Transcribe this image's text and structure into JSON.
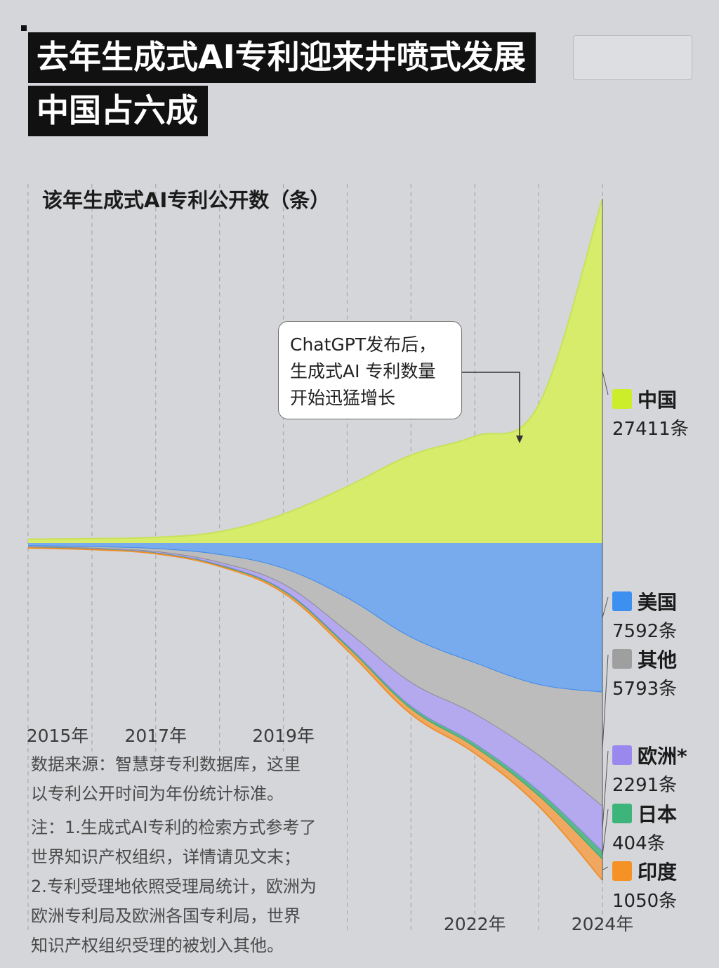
{
  "header": {
    "title_line1": "去年生成式AI专利迎来井喷式发展",
    "title_line2": "中国占六成"
  },
  "annotation": {
    "line1": "ChatGPT发布后，",
    "line2": "生成式AI 专利数量",
    "line3": "开始迅猛增长"
  },
  "notes": {
    "source_line1": "数据来源：智慧芽专利数据库，这里",
    "source_line2": "以专利公开时间为年份统计标准。",
    "note_line1": "注：1.生成式AI专利的检索方式参考了",
    "note_line2": "世界知识产权组织，详情请见文末；",
    "note_line3": "2.专利受理地依照受理局统计，欧洲为",
    "note_line4": "欧洲专利局及欧洲各国专利局，世界",
    "note_line5": "知识产权组织受理的被划入其他。"
  },
  "chart_data": {
    "type": "area",
    "title": "该年生成式AI专利公开数（条）",
    "x": [
      2015,
      2016,
      2017,
      2018,
      2019,
      2020,
      2021,
      2022,
      2023,
      2024
    ],
    "x_tick_labels": [
      "2015年",
      "2017年",
      "2019年",
      "2022年",
      "2024年"
    ],
    "x_tick_years": [
      2015,
      2017,
      2019,
      2022,
      2024
    ],
    "series": [
      {
        "name": "中国",
        "values": [
          300,
          350,
          450,
          900,
          2300,
          4500,
          7000,
          8500,
          11000,
          27411
        ],
        "color": "#d7ec6a",
        "stroke": "#c6e25a",
        "value_label": "27411条",
        "swatch": "#ccee2a"
      },
      {
        "name": "美国",
        "values": [
          150,
          200,
          300,
          600,
          1300,
          2800,
          4800,
          6100,
          7200,
          7592
        ],
        "color": "#78aaee",
        "stroke": "#3a8ae8",
        "value_label": "7592条",
        "swatch": "#3d8ff0"
      },
      {
        "name": "其他",
        "values": [
          60,
          80,
          150,
          400,
          800,
          1700,
          2300,
          2600,
          3600,
          5793
        ],
        "color": "#bcbcbc",
        "stroke": "#8c8c8c",
        "value_label": "5793条",
        "swatch": "#9f9f9f"
      },
      {
        "name": "欧洲*",
        "values": [
          20,
          30,
          60,
          120,
          300,
          700,
          1200,
          1500,
          1800,
          2291
        ],
        "color": "#b4a8ef",
        "stroke": "#9584ec",
        "value_label": "2291条",
        "swatch": "#9a88ee"
      },
      {
        "name": "日本",
        "values": [
          10,
          12,
          18,
          30,
          50,
          90,
          140,
          180,
          260,
          404
        ],
        "color": "#5ab88a",
        "stroke": "#3aa570",
        "value_label": "404条",
        "swatch": "#3cb47a"
      },
      {
        "name": "印度",
        "values": [
          10,
          12,
          18,
          40,
          80,
          150,
          250,
          300,
          500,
          1050
        ],
        "color": "#f0a860",
        "stroke": "#ee9030",
        "value_label": "1050条",
        "swatch": "#f59226"
      }
    ],
    "legend_position": "right",
    "grid": true
  }
}
